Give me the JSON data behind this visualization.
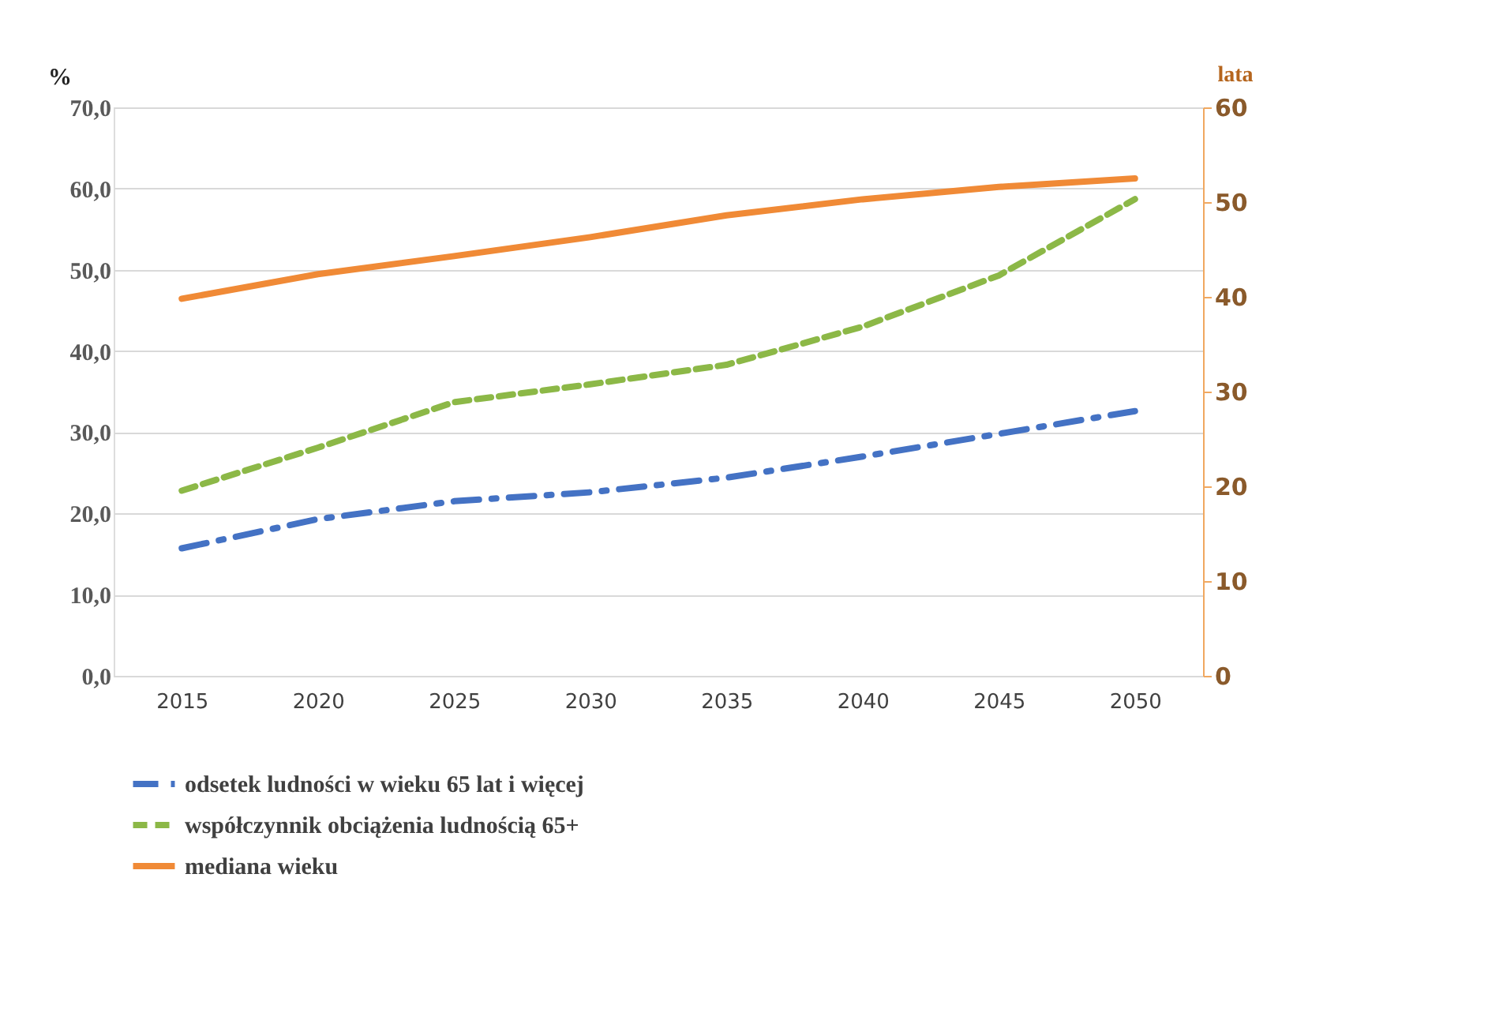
{
  "chart_data": {
    "type": "line",
    "ylabel": "%",
    "y2label": "lata",
    "categories": [
      "2015",
      "2020",
      "2025",
      "2030",
      "2035",
      "2040",
      "2045",
      "2050"
    ],
    "ylim": [
      0,
      70
    ],
    "yticks": [
      {
        "value": 0,
        "label": "0,0"
      },
      {
        "value": 10,
        "label": "10,0"
      },
      {
        "value": 20,
        "label": "20,0"
      },
      {
        "value": 30,
        "label": "30,0"
      },
      {
        "value": 40,
        "label": "40,0"
      },
      {
        "value": 50,
        "label": "50,0"
      },
      {
        "value": 60,
        "label": "60,0"
      },
      {
        "value": 70,
        "label": "70,0"
      }
    ],
    "y2lim": [
      0,
      60
    ],
    "y2ticks": [
      0,
      10,
      20,
      30,
      40,
      50,
      60
    ],
    "grid": "y",
    "legend": "bottom",
    "marker": "none",
    "series": [
      {
        "name": "odsetek ludności w wieku 65 lat i więcej",
        "color": "#4472c4",
        "line_style": "dashdot",
        "values": [
          15.7,
          19.3,
          21.5,
          22.6,
          24.4,
          27.0,
          29.8,
          32.6
        ]
      },
      {
        "name": "współczynnik obciążenia ludnością 65+",
        "color": "#8cb847",
        "line_style": "dashed",
        "values": [
          22.8,
          28.1,
          33.7,
          35.9,
          38.3,
          43.0,
          49.3,
          58.7
        ]
      },
      {
        "name": "mediana wieku",
        "color": "#f08a36",
        "line_style": "solid",
        "axis": "y2",
        "values": [
          39.8,
          42.4,
          44.3,
          46.3,
          48.6,
          50.3,
          51.6,
          52.5
        ]
      }
    ]
  }
}
